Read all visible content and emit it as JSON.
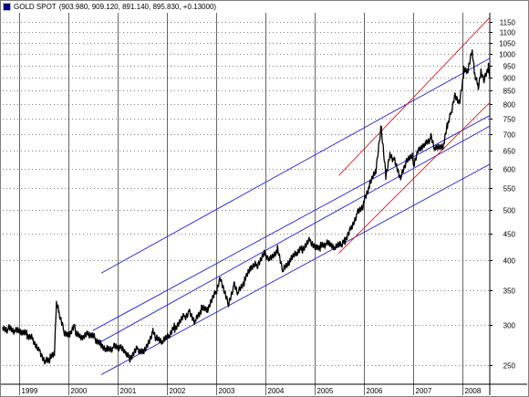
{
  "window": {
    "symbol": "GOLD SPOT",
    "ohlc": "(903.980, 909.120, 891.140, 895.830, +0.13000)",
    "icon": "chart-window-icon"
  },
  "colors": {
    "price": "#000000",
    "channel": "#1f1fd8",
    "trend": "#e01818",
    "grid": "#000000",
    "frame": "#808080"
  },
  "chart_data": {
    "type": "line",
    "title": "GOLD SPOT",
    "y_scale": "log",
    "ylim": [
      230,
      1200
    ],
    "xlim": [
      "1998-09-01",
      "2008-07-25"
    ],
    "y_ticks": [
      250,
      300,
      350,
      400,
      450,
      500,
      550,
      600,
      650,
      700,
      750,
      800,
      850,
      900,
      950,
      1000,
      1050,
      1100,
      1150
    ],
    "x_ticks": [
      {
        "label": "1999",
        "date": "1999-01-01"
      },
      {
        "label": "2000",
        "date": "2000-01-01"
      },
      {
        "label": "2001",
        "date": "2001-01-01"
      },
      {
        "label": "2002",
        "date": "2002-01-01"
      },
      {
        "label": "2003",
        "date": "2003-01-01"
      },
      {
        "label": "2004",
        "date": "2004-01-01"
      },
      {
        "label": "2005",
        "date": "2005-01-01"
      },
      {
        "label": "2006",
        "date": "2006-01-01"
      },
      {
        "label": "2007",
        "date": "2007-01-01"
      },
      {
        "label": "2008",
        "date": "2008-01-01"
      }
    ],
    "grid": "dotted horizontal, solid vertical year separators",
    "series": [
      {
        "x": [
          "1998-09-01",
          "1998-10-15",
          "1998-12-01",
          "1999-01-15",
          "1999-03-01",
          "1999-04-15",
          "1999-06-01",
          "1999-07-15",
          "1999-08-20",
          "1999-09-20",
          "1999-10-05",
          "1999-10-20",
          "1999-12-01",
          "2000-01-15",
          "2000-02-10",
          "2000-03-01",
          "2000-04-15",
          "2000-06-01",
          "2000-07-15",
          "2000-09-01",
          "2000-10-15",
          "2000-12-01",
          "2001-01-15",
          "2001-03-01",
          "2001-04-01",
          "2001-06-01",
          "2001-07-15",
          "2001-09-20",
          "2001-10-15",
          "2001-12-01",
          "2002-01-15",
          "2002-03-01",
          "2002-05-15",
          "2002-06-15",
          "2002-08-01",
          "2002-09-15",
          "2002-11-01",
          "2002-12-31",
          "2003-02-05",
          "2003-04-01",
          "2003-05-15",
          "2003-06-15",
          "2003-08-01",
          "2003-09-15",
          "2003-11-01",
          "2003-12-31",
          "2004-02-01",
          "2004-04-01",
          "2004-05-15",
          "2004-07-01",
          "2004-08-15",
          "2004-10-01",
          "2004-12-01",
          "2005-01-15",
          "2005-02-15",
          "2005-04-01",
          "2005-06-01",
          "2005-07-15",
          "2005-08-15",
          "2005-10-01",
          "2005-11-15",
          "2005-12-31",
          "2006-02-15",
          "2006-04-01",
          "2006-05-12",
          "2006-06-14",
          "2006-07-15",
          "2006-08-15",
          "2006-10-05",
          "2006-11-15",
          "2006-12-31",
          "2007-01-05",
          "2007-02-15",
          "2007-04-01",
          "2007-05-15",
          "2007-06-15",
          "2007-08-16",
          "2007-09-15",
          "2007-10-15",
          "2007-11-08",
          "2007-12-15",
          "2008-01-15",
          "2008-02-15",
          "2008-03-17",
          "2008-04-01",
          "2008-05-01",
          "2008-05-20",
          "2008-06-15",
          "2008-07-15",
          "2008-07-25"
        ],
        "y": [
          296,
          294,
          290,
          288,
          286,
          282,
          268,
          256,
          257,
          262,
          330,
          320,
          292,
          289,
          300,
          285,
          280,
          287,
          283,
          276,
          270,
          271,
          270,
          262,
          258,
          270,
          268,
          292,
          280,
          276,
          283,
          296,
          312,
          320,
          305,
          320,
          318,
          345,
          370,
          330,
          360,
          345,
          362,
          383,
          390,
          412,
          405,
          420,
          380,
          395,
          408,
          420,
          438,
          425,
          425,
          428,
          420,
          425,
          438,
          465,
          495,
          513,
          555,
          590,
          720,
          585,
          645,
          625,
          575,
          615,
          630,
          612,
          660,
          675,
          690,
          650,
          660,
          725,
          780,
          840,
          810,
          925,
          920,
          1010,
          920,
          870,
          930,
          895,
          940,
          896
        ],
        "name": ""
      }
    ],
    "overlays": [
      {
        "kind": "channel",
        "color": "blue",
        "from": {
          "date": "2000-09-01",
          "value": 377
        },
        "to": {
          "date": "2008-07-25",
          "value": 980
        }
      },
      {
        "kind": "channel",
        "color": "blue",
        "from": {
          "date": "2000-07-01",
          "value": 292
        },
        "to": {
          "date": "2008-07-25",
          "value": 760
        }
      },
      {
        "kind": "channel",
        "color": "blue",
        "from": {
          "date": "2000-09-01",
          "value": 278
        },
        "to": {
          "date": "2008-07-25",
          "value": 725
        }
      },
      {
        "kind": "channel",
        "color": "blue",
        "from": {
          "date": "2000-09-01",
          "value": 240
        },
        "to": {
          "date": "2008-07-25",
          "value": 612
        }
      },
      {
        "kind": "trend",
        "color": "red",
        "from": {
          "date": "2005-07-01",
          "value": 582
        },
        "to": {
          "date": "2008-07-25",
          "value": 1175
        }
      },
      {
        "kind": "trend",
        "color": "red",
        "from": {
          "date": "2005-07-01",
          "value": 412
        },
        "to": {
          "date": "2008-07-25",
          "value": 805
        }
      }
    ]
  }
}
